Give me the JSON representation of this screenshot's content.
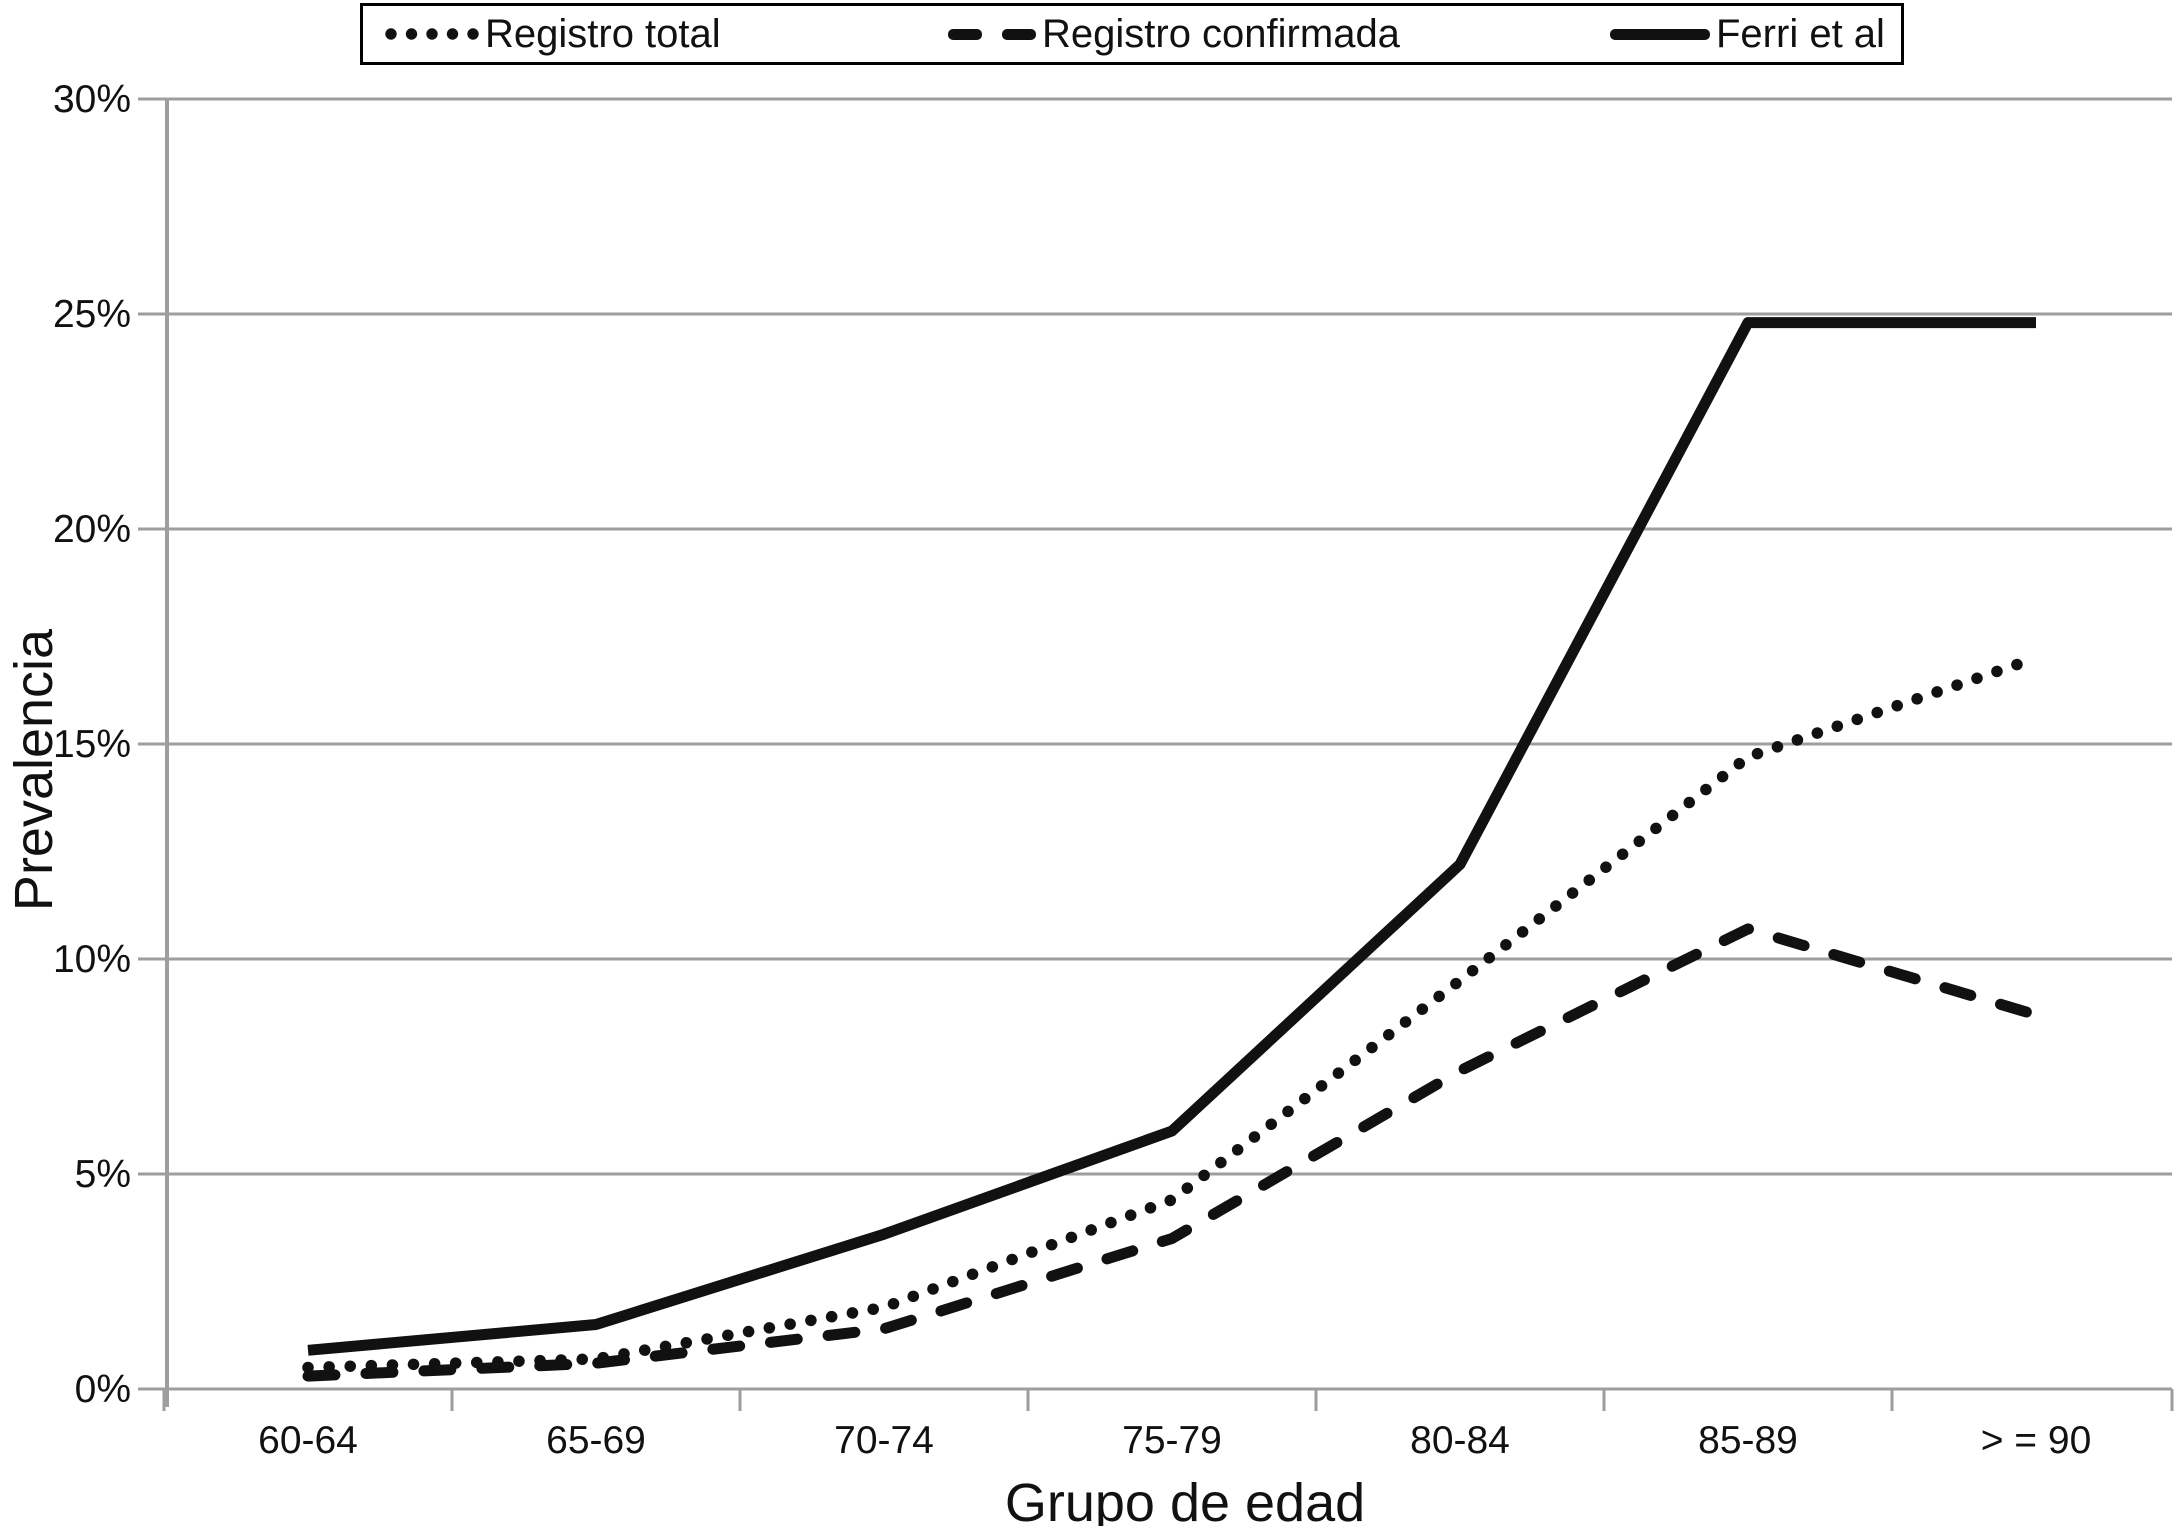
{
  "figure_description": "Line chart of dementia prevalence by age group comparing registry data with Ferri et al",
  "legend": {
    "items": [
      {
        "label": "Registro total",
        "marker": "dotted-line-swatch"
      },
      {
        "label": "Registro confirmada",
        "marker": "dashed-line-swatch"
      },
      {
        "label": "Ferri et al",
        "marker": "solid-line-swatch"
      }
    ]
  },
  "chart_data": {
    "type": "line",
    "title": "",
    "xlabel": "Grupo de edad",
    "ylabel": "Prevalencia",
    "categories": [
      "60-64",
      "65-69",
      "70-74",
      "75-79",
      "80-84",
      "85-89",
      "> = 90"
    ],
    "series": [
      {
        "name": "Registro total",
        "style": "dotted",
        "values": [
          0.5,
          0.7,
          1.9,
          4.4,
          9.5,
          14.7,
          17.0
        ]
      },
      {
        "name": "Registro confirmada",
        "style": "dashed",
        "values": [
          0.3,
          0.6,
          1.4,
          3.5,
          7.4,
          10.7,
          8.7
        ]
      },
      {
        "name": "Ferri et al",
        "style": "solid",
        "values": [
          0.9,
          1.5,
          3.6,
          6.0,
          12.2,
          24.8,
          24.8
        ]
      }
    ],
    "ylim": [
      0,
      30
    ],
    "ytick_step": 5,
    "ytick_labels": [
      "0%",
      "5%",
      "10%",
      "15%",
      "20%",
      "25%",
      "30%"
    ],
    "grid": "horizontal",
    "legend_position": "top-boxed",
    "colors": {
      "line": "#111111",
      "grid": "#9e9e9e",
      "text": "#111111",
      "background": "#ffffff"
    }
  }
}
